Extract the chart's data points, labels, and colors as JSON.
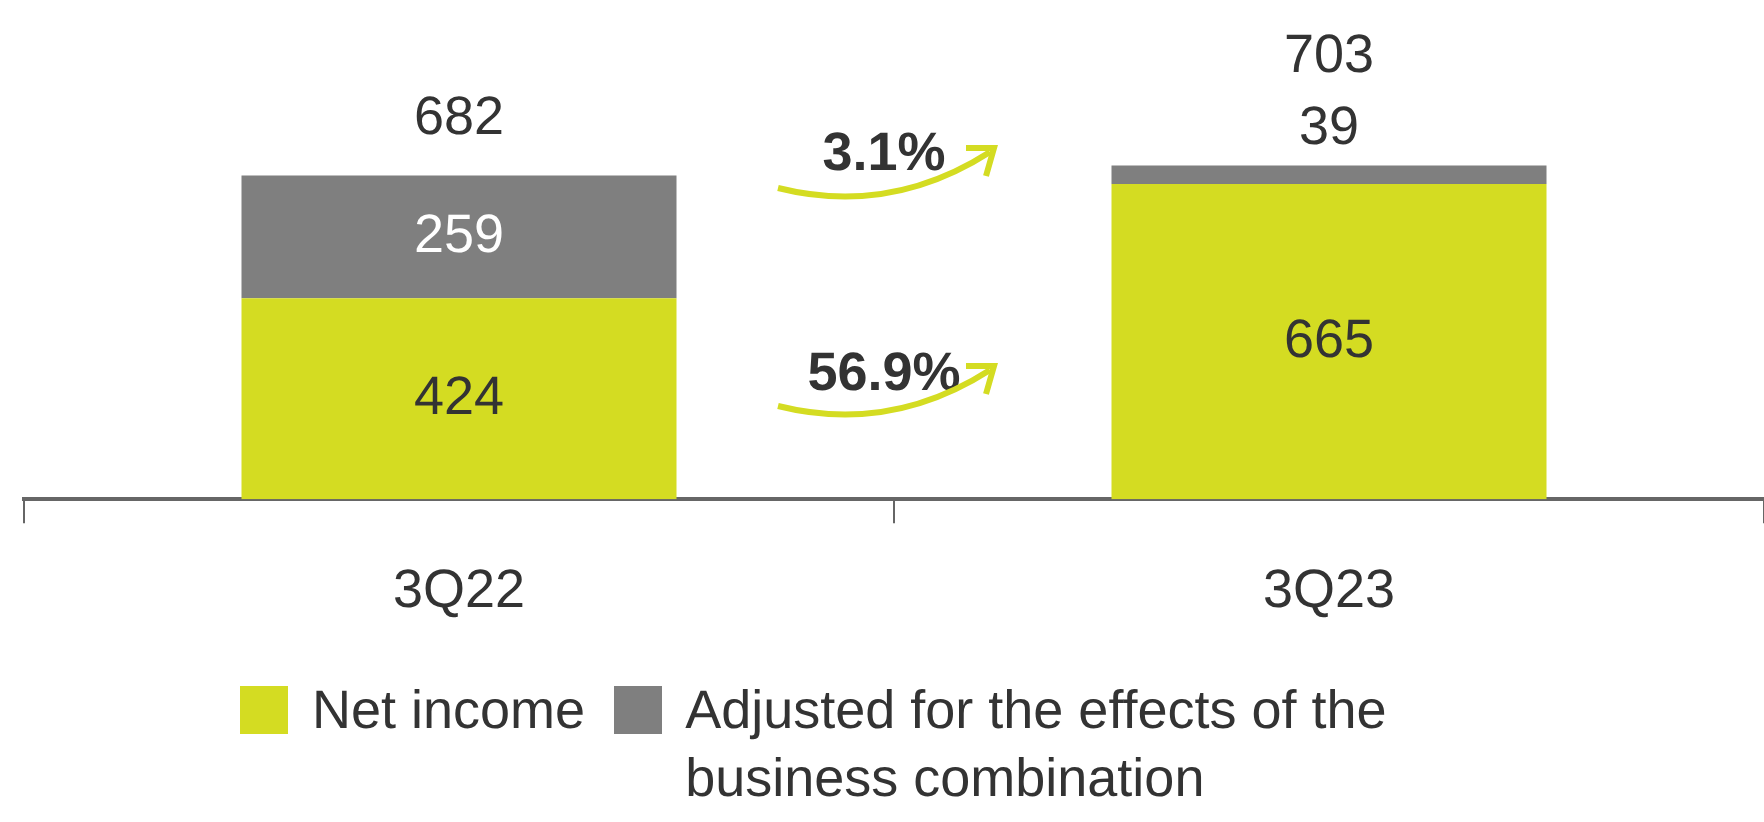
{
  "chart_data": {
    "type": "bar",
    "stacked": true,
    "categories": [
      "3Q22",
      "3Q23"
    ],
    "series": [
      {
        "name": "Net income",
        "color": "#d4dc22",
        "values": [
          424,
          665
        ]
      },
      {
        "name": "Adjusted for the effects of the business combination",
        "color": "#7f7f7f",
        "values": [
          259,
          39
        ]
      }
    ],
    "data_labels": true,
    "totals": [
      "682",
      "703"
    ],
    "legend": "bottom",
    "grid": false,
    "annotations": [
      "56.9%",
      "3.1%"
    ]
  }
}
